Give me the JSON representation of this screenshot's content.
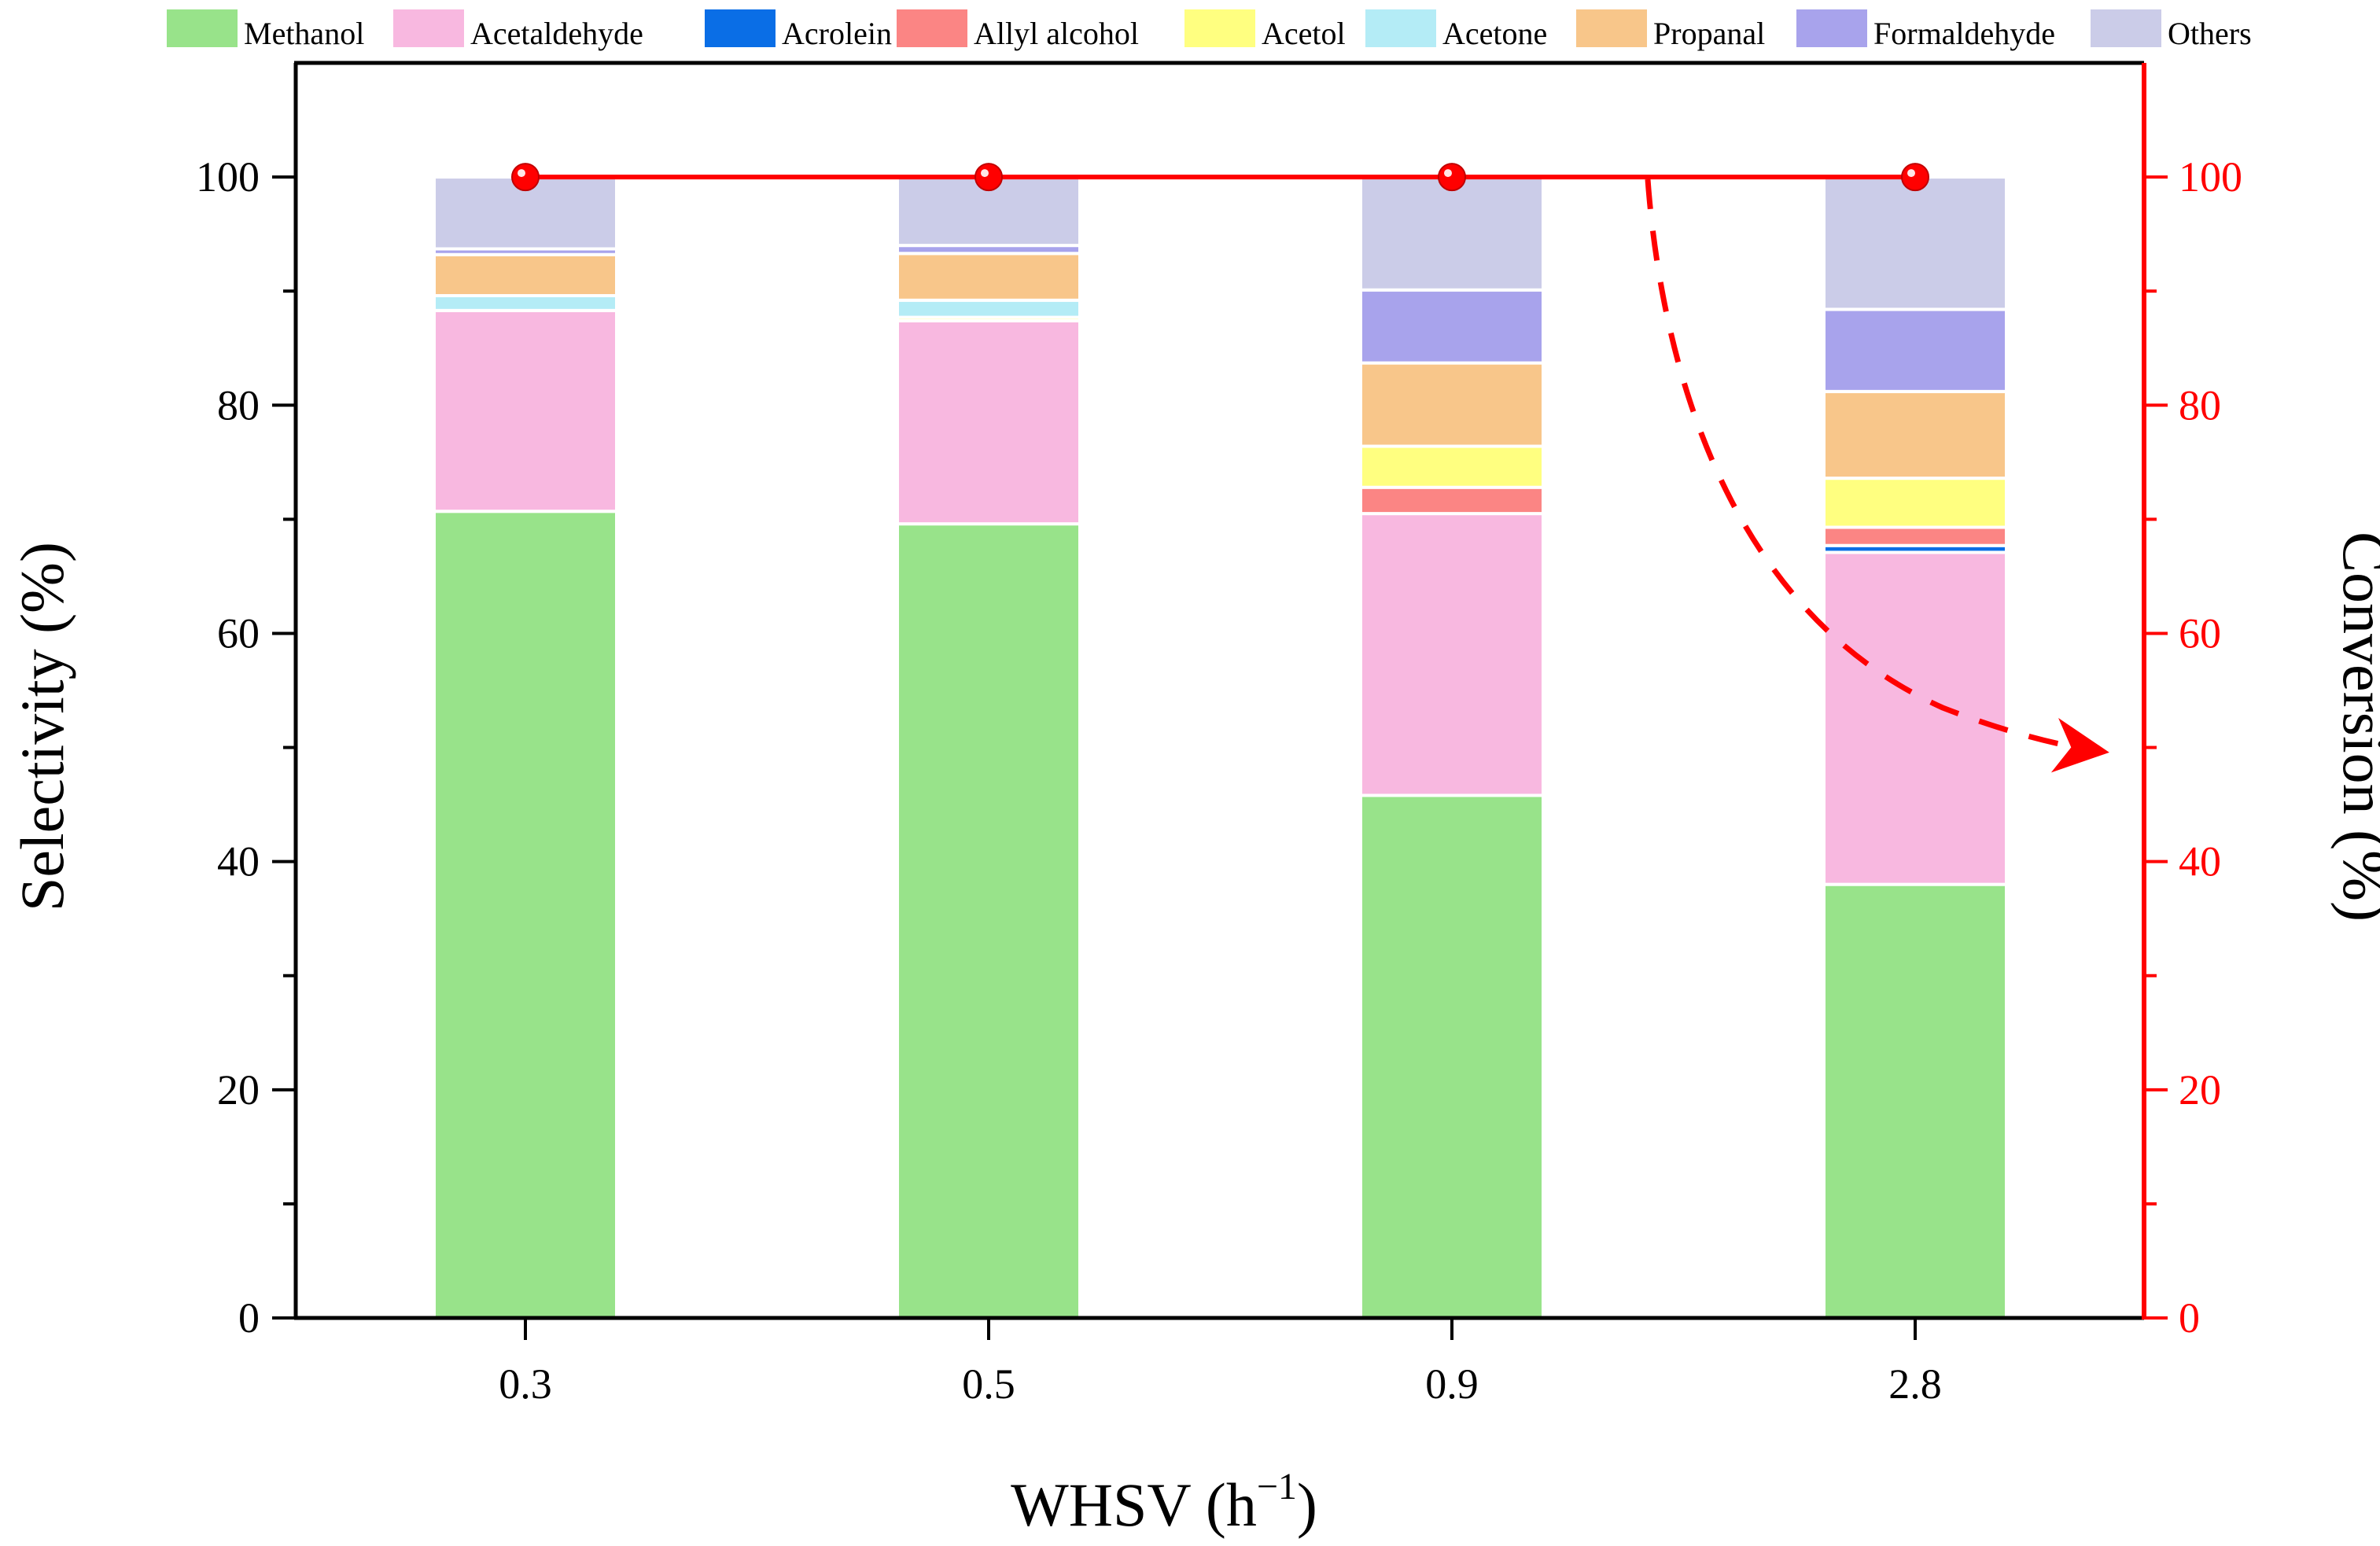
{
  "chart_data": {
    "type": "bar",
    "stacked": true,
    "categories": [
      "0.3",
      "0.5",
      "0.9",
      "2.8"
    ],
    "xlabel": "WHSV (h",
    "xlabel_superscript": "−1",
    "xlabel_suffix": ")",
    "ylabel": "Selectivity (%)",
    "ylim": [
      0,
      110
    ],
    "yticks": [
      0,
      20,
      40,
      60,
      80,
      100
    ],
    "y2label": "Conversion (%)",
    "y2lim": [
      0,
      110
    ],
    "y2ticks": [
      0,
      20,
      40,
      60,
      80,
      100
    ],
    "legend_position": "top",
    "series": [
      {
        "name": "Methanol",
        "color": "#98E38A",
        "values": [
          70.7,
          69.6,
          45.8,
          38.0
        ]
      },
      {
        "name": "Acetaldehyde",
        "color": "#F8B8E0",
        "values": [
          17.6,
          17.8,
          24.7,
          29.1
        ]
      },
      {
        "name": "Acrolein",
        "color": "#0A6EE6",
        "values": [
          0.0,
          0.0,
          0.0,
          0.6
        ]
      },
      {
        "name": "Allyl alcohol",
        "color": "#FB8584",
        "values": [
          0.0,
          0.0,
          2.3,
          1.6
        ]
      },
      {
        "name": "Acetol",
        "color": "#FFFF80",
        "values": [
          0.0,
          0.3,
          3.6,
          4.3
        ]
      },
      {
        "name": "Acetone",
        "color": "#B4ECF6",
        "values": [
          1.3,
          1.5,
          0.0,
          0.0
        ]
      },
      {
        "name": "Propanal",
        "color": "#F8C68A",
        "values": [
          3.6,
          4.1,
          7.3,
          7.6
        ]
      },
      {
        "name": "Formaldehyde",
        "color": "#A8A3EC",
        "values": [
          0.5,
          0.7,
          6.4,
          7.2
        ]
      },
      {
        "name": "Others",
        "color": "#CBCCE8",
        "values": [
          6.3,
          6.0,
          9.9,
          11.6
        ]
      }
    ],
    "conversion": {
      "name": "Conversion",
      "color": "#FF0000",
      "values": [
        100,
        100,
        100,
        100
      ]
    }
  }
}
